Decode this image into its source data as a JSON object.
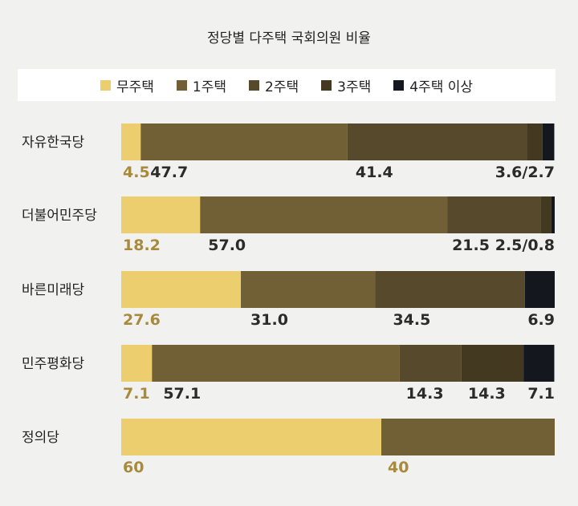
{
  "chart_data": {
    "type": "bar",
    "orientation": "horizontal",
    "stacked": true,
    "title": "정당별 다주택 국회의원 비율",
    "legend_position": "top",
    "categories": [
      "자유한국당",
      "더불어민주당",
      "바른미래당",
      "민주평화당",
      "정의당"
    ],
    "series": [
      {
        "name": "무주택",
        "color": "#ecce6e",
        "values": [
          4.5,
          18.2,
          27.6,
          7.1,
          60
        ]
      },
      {
        "name": "1주택",
        "color": "#715f36",
        "values": [
          47.7,
          57.0,
          31.0,
          57.1,
          40
        ]
      },
      {
        "name": "2주택",
        "color": "#574a2c",
        "values": [
          41.4,
          21.5,
          34.5,
          14.3,
          0
        ]
      },
      {
        "name": "3주택",
        "color": "#433820",
        "values": [
          3.6,
          2.5,
          0,
          14.3,
          0
        ]
      },
      {
        "name": "4주택 이상",
        "color": "#15171e",
        "values": [
          2.7,
          0.8,
          6.9,
          7.1,
          0
        ]
      }
    ],
    "value_labels": [
      [
        "4.5",
        "47.7",
        "41.4",
        "3.6/2.7"
      ],
      [
        "18.2",
        "57.0",
        "21.5",
        "2.5/0.8"
      ],
      [
        "27.6",
        "31.0",
        "34.5",
        "6.9"
      ],
      [
        "7.1",
        "57.1",
        "14.3",
        "14.3",
        "7.1"
      ],
      [
        "60",
        "40"
      ]
    ],
    "label_colors": {
      "first": "#a88a3c",
      "other": "#2b2b2b"
    },
    "xlim": [
      0,
      100
    ],
    "grid": false
  }
}
